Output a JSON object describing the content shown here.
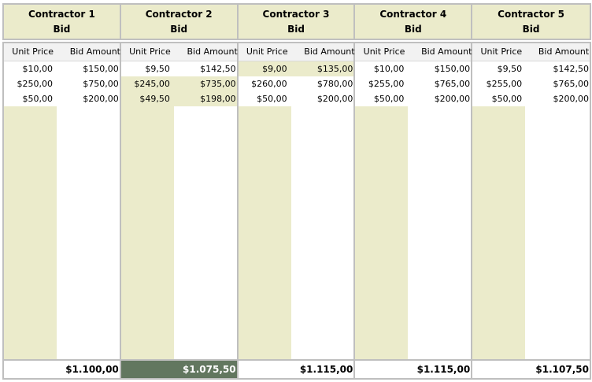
{
  "colors": {
    "header_bg": "#ebebcb",
    "stripe": "#ebebcb",
    "border": "#bfbfbf",
    "lowest_bid_bg": "#62775f",
    "lowest_bid_text": "#ffffff"
  },
  "subheaders": {
    "unit_price": "Unit Price",
    "bid_amount": "Bid Amount"
  },
  "contractors": [
    {
      "name": "Contractor 1",
      "sub": "Bid",
      "rows": [
        {
          "unit_price": "$10,00",
          "bid_amount": "$150,00",
          "highlight": false
        },
        {
          "unit_price": "$250,00",
          "bid_amount": "$750,00",
          "highlight": false
        },
        {
          "unit_price": "$50,00",
          "bid_amount": "$200,00",
          "highlight": false
        }
      ],
      "total": "$1.100,00",
      "lowest": false
    },
    {
      "name": "Contractor 2",
      "sub": "Bid",
      "rows": [
        {
          "unit_price": "$9,50",
          "bid_amount": "$142,50",
          "highlight": false
        },
        {
          "unit_price": "$245,00",
          "bid_amount": "$735,00",
          "highlight": true
        },
        {
          "unit_price": "$49,50",
          "bid_amount": "$198,00",
          "highlight": true
        }
      ],
      "total": "$1.075,50",
      "lowest": true
    },
    {
      "name": "Contractor 3",
      "sub": "Bid",
      "rows": [
        {
          "unit_price": "$9,00",
          "bid_amount": "$135,00",
          "highlight": true
        },
        {
          "unit_price": "$260,00",
          "bid_amount": "$780,00",
          "highlight": false
        },
        {
          "unit_price": "$50,00",
          "bid_amount": "$200,00",
          "highlight": false
        }
      ],
      "total": "$1.115,00",
      "lowest": false
    },
    {
      "name": "Contractor 4",
      "sub": "Bid",
      "rows": [
        {
          "unit_price": "$10,00",
          "bid_amount": "$150,00",
          "highlight": false
        },
        {
          "unit_price": "$255,00",
          "bid_amount": "$765,00",
          "highlight": false
        },
        {
          "unit_price": "$50,00",
          "bid_amount": "$200,00",
          "highlight": false
        }
      ],
      "total": "$1.115,00",
      "lowest": false
    },
    {
      "name": "Contractor 5",
      "sub": "Bid",
      "rows": [
        {
          "unit_price": "$9,50",
          "bid_amount": "$142,50",
          "highlight": false
        },
        {
          "unit_price": "$255,00",
          "bid_amount": "$765,00",
          "highlight": false
        },
        {
          "unit_price": "$50,00",
          "bid_amount": "$200,00",
          "highlight": false
        }
      ],
      "total": "$1.107,50",
      "lowest": false
    }
  ]
}
